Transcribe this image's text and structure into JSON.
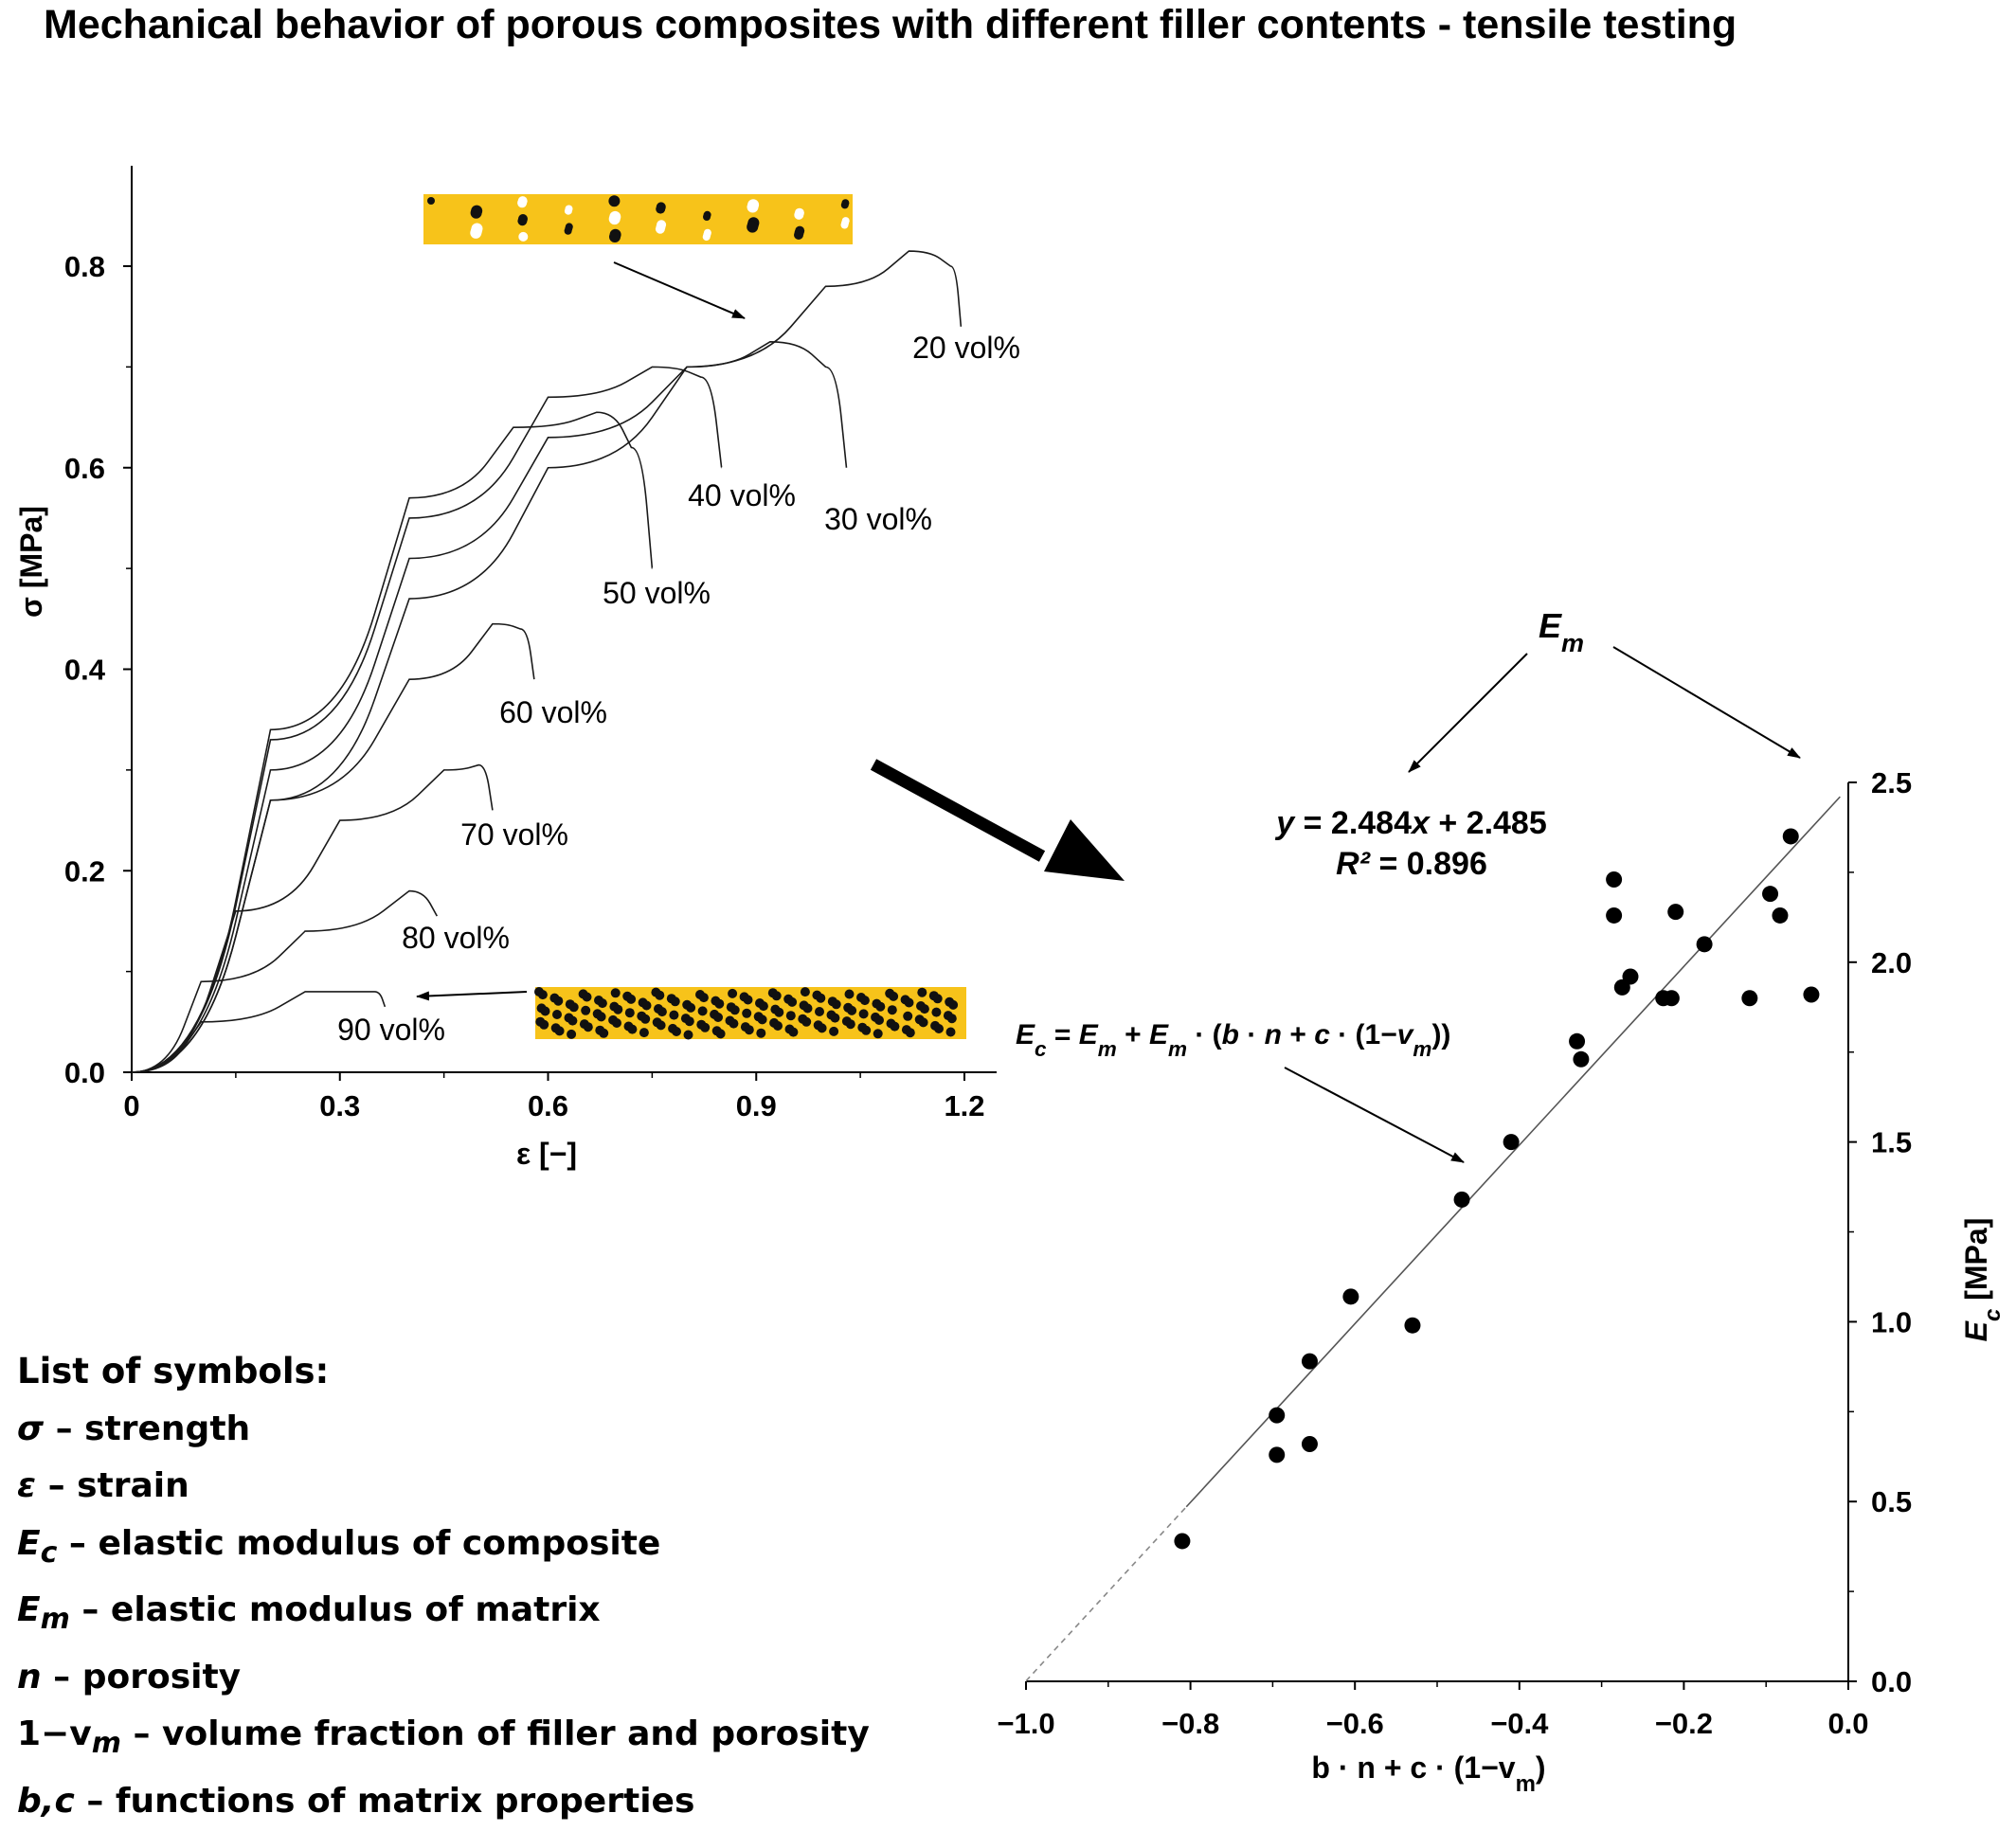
{
  "title": "Mechanical behavior of porous composites with different filler contents - tensile testing",
  "chart_data": [
    {
      "type": "line",
      "xlabel": "ε [−]",
      "ylabel": "σ [MPa]",
      "xlim": [
        0,
        1.2
      ],
      "ylim": [
        0,
        0.8
      ],
      "x_ticks": [
        "0",
        "0.3",
        "0.6",
        "0.9",
        "1.2"
      ],
      "y_ticks": [
        "0.0",
        "0.2",
        "0.4",
        "0.6",
        "0.8"
      ],
      "grid": false,
      "series": [
        {
          "name": "20 vol%",
          "x": [
            0,
            0.2,
            0.4,
            0.6,
            0.8,
            1.0,
            1.12,
            1.18,
            1.195
          ],
          "y": [
            0,
            0.27,
            0.47,
            0.6,
            0.7,
            0.78,
            0.815,
            0.8,
            0.74
          ]
        },
        {
          "name": "30 vol%",
          "x": [
            0,
            0.2,
            0.4,
            0.6,
            0.8,
            0.92,
            1.0,
            1.03
          ],
          "y": [
            0,
            0.3,
            0.51,
            0.63,
            0.7,
            0.725,
            0.7,
            0.6
          ]
        },
        {
          "name": "40 vol%",
          "x": [
            0,
            0.2,
            0.4,
            0.6,
            0.75,
            0.82,
            0.85
          ],
          "y": [
            0,
            0.33,
            0.55,
            0.67,
            0.7,
            0.69,
            0.6
          ]
        },
        {
          "name": "50 vol%",
          "x": [
            0,
            0.2,
            0.4,
            0.55,
            0.67,
            0.72,
            0.75
          ],
          "y": [
            0,
            0.34,
            0.57,
            0.64,
            0.655,
            0.62,
            0.5
          ]
        },
        {
          "name": "60 vol%",
          "x": [
            0,
            0.2,
            0.4,
            0.52,
            0.56,
            0.58
          ],
          "y": [
            0,
            0.27,
            0.39,
            0.445,
            0.44,
            0.39
          ]
        },
        {
          "name": "70 vol%",
          "x": [
            0,
            0.15,
            0.3,
            0.45,
            0.5,
            0.52
          ],
          "y": [
            0,
            0.16,
            0.25,
            0.3,
            0.305,
            0.26
          ]
        },
        {
          "name": "80 vol%",
          "x": [
            0,
            0.1,
            0.25,
            0.4,
            0.44
          ],
          "y": [
            0,
            0.09,
            0.14,
            0.18,
            0.155
          ]
        },
        {
          "name": "90 vol%",
          "x": [
            0,
            0.1,
            0.25,
            0.35,
            0.365
          ],
          "y": [
            0,
            0.05,
            0.08,
            0.08,
            0.065
          ]
        }
      ],
      "annotations": {
        "porous_label": "",
        "dense_label": ""
      }
    },
    {
      "type": "scatter",
      "xlabel_parts": [
        "b · n + c · (1−v",
        "m",
        ")"
      ],
      "ylabel_parts": [
        "E",
        "c",
        " [MPa]"
      ],
      "xlim": [
        -1.0,
        0.0
      ],
      "ylim": [
        0.0,
        2.5
      ],
      "x_ticks": [
        "−1.0",
        "−0.8",
        "−0.6",
        "−0.4",
        "−0.2",
        "0.0"
      ],
      "y_ticks": [
        "0.0",
        "0.5",
        "1.0",
        "1.5",
        "2.0",
        "2.5"
      ],
      "grid": false,
      "points": [
        {
          "x": -0.81,
          "y": 0.39
        },
        {
          "x": -0.695,
          "y": 0.63
        },
        {
          "x": -0.695,
          "y": 0.74
        },
        {
          "x": -0.655,
          "y": 0.66
        },
        {
          "x": -0.655,
          "y": 0.89
        },
        {
          "x": -0.605,
          "y": 1.07
        },
        {
          "x": -0.53,
          "y": 0.99
        },
        {
          "x": -0.47,
          "y": 1.34
        },
        {
          "x": -0.41,
          "y": 1.5
        },
        {
          "x": -0.33,
          "y": 1.78
        },
        {
          "x": -0.325,
          "y": 1.73
        },
        {
          "x": -0.285,
          "y": 2.23
        },
        {
          "x": -0.285,
          "y": 2.13
        },
        {
          "x": -0.275,
          "y": 1.93
        },
        {
          "x": -0.265,
          "y": 1.96
        },
        {
          "x": -0.225,
          "y": 1.9
        },
        {
          "x": -0.215,
          "y": 1.9
        },
        {
          "x": -0.21,
          "y": 2.14
        },
        {
          "x": -0.175,
          "y": 2.05
        },
        {
          "x": -0.12,
          "y": 1.9
        },
        {
          "x": -0.095,
          "y": 2.19
        },
        {
          "x": -0.083,
          "y": 2.13
        },
        {
          "x": -0.07,
          "y": 2.35
        },
        {
          "x": -0.045,
          "y": 1.91
        }
      ],
      "trendline": {
        "slope": 2.484,
        "intercept": 2.485,
        "solid_x": [
          -0.805,
          -0.01
        ],
        "dashed_x": [
          -1.0,
          -0.805
        ],
        "equation": {
          "lead": "y",
          "body": " = 2.484",
          "var": "x",
          "tail": " + 2.485"
        },
        "r2": {
          "lead": "R²",
          "tail": " = 0.896"
        }
      },
      "annotations": {
        "em_parts": [
          "E",
          "m"
        ],
        "formula_parts": [
          {
            "t": "E",
            "i": true
          },
          {
            "t": "c",
            "i": true,
            "sub": true
          },
          {
            "t": " = "
          },
          {
            "t": "E",
            "i": true
          },
          {
            "t": "m",
            "i": true,
            "sub": true
          },
          {
            "t": " + "
          },
          {
            "t": "E",
            "i": true
          },
          {
            "t": "m",
            "i": true,
            "sub": true
          },
          {
            "t": " · ("
          },
          {
            "t": "b",
            "i": true
          },
          {
            "t": " · "
          },
          {
            "t": "n",
            "i": true
          },
          {
            "t": " + "
          },
          {
            "t": "c",
            "i": true
          },
          {
            "t": " · (1−"
          },
          {
            "t": "v",
            "i": true
          },
          {
            "t": "m",
            "i": true,
            "sub": true
          },
          {
            "t": "))"
          }
        ]
      }
    }
  ],
  "symbols": {
    "heading": "List of symbols:",
    "items": [
      {
        "sym": "σ",
        "sub": "",
        "text": " – strength",
        "italic": true
      },
      {
        "sym": "ε",
        "sub": "",
        "text": " – strain",
        "italic": true
      },
      {
        "sym": "E",
        "sub": "c",
        "text": " – elastic modulus of composite",
        "italic": true
      },
      {
        "sym": "E",
        "sub": "m",
        "text": " – elastic modulus of matrix",
        "italic": true
      },
      {
        "sym": "n",
        "sub": "",
        "text": " – porosity",
        "italic": true
      },
      {
        "sym": "1−v",
        "sub": "m",
        "text": " – volume fraction of filler and porosity",
        "italic": false
      },
      {
        "sym": "b,c",
        "sub": "",
        "text": " – functions of matrix properties",
        "italic": true
      }
    ]
  }
}
